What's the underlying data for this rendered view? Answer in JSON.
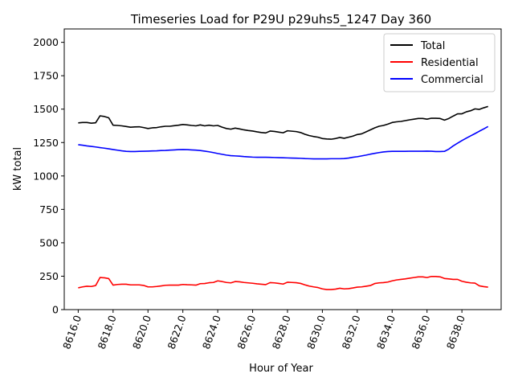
{
  "chart_data": {
    "type": "line",
    "title": "Timeseries Load for P29U p29uhs5_1247  Day 360",
    "xlabel": "Hour of Year",
    "ylabel": "kW total",
    "xlim": [
      8615.2,
      8640.25
    ],
    "ylim": [
      0,
      2100
    ],
    "x_ticks": [
      8616,
      8618,
      8620,
      8622,
      8624,
      8626,
      8628,
      8630,
      8632,
      8634,
      8636,
      8638
    ],
    "x_tick_labels": [
      "8616.0",
      "8618.0",
      "8620.0",
      "8622.0",
      "8624.0",
      "8626.0",
      "8628.0",
      "8630.0",
      "8632.0",
      "8634.0",
      "8636.0",
      "8638.0"
    ],
    "y_ticks": [
      0,
      250,
      500,
      750,
      1000,
      1250,
      1500,
      1750,
      2000
    ],
    "y_tick_labels": [
      "0",
      "250",
      "500",
      "750",
      "1000",
      "1250",
      "1500",
      "1750",
      "2000"
    ],
    "grid": false,
    "legend_position": "top-right",
    "x": [
      8616.0,
      8616.25,
      8616.5,
      8616.75,
      8617.0,
      8617.25,
      8617.5,
      8617.75,
      8618.0,
      8618.25,
      8618.5,
      8618.75,
      8619.0,
      8619.25,
      8619.5,
      8619.75,
      8620.0,
      8620.25,
      8620.5,
      8620.75,
      8621.0,
      8621.25,
      8621.5,
      8621.75,
      8622.0,
      8622.25,
      8622.5,
      8622.75,
      8623.0,
      8623.25,
      8623.5,
      8623.75,
      8624.0,
      8624.25,
      8624.5,
      8624.75,
      8625.0,
      8625.25,
      8625.5,
      8625.75,
      8626.0,
      8626.25,
      8626.5,
      8626.75,
      8627.0,
      8627.25,
      8627.5,
      8627.75,
      8628.0,
      8628.25,
      8628.5,
      8628.75,
      8629.0,
      8629.25,
      8629.5,
      8629.75,
      8630.0,
      8630.25,
      8630.5,
      8630.75,
      8631.0,
      8631.25,
      8631.5,
      8631.75,
      8632.0,
      8632.25,
      8632.5,
      8632.75,
      8633.0,
      8633.25,
      8633.5,
      8633.75,
      8634.0,
      8634.25,
      8634.5,
      8634.75,
      8635.0,
      8635.25,
      8635.5,
      8635.75,
      8636.0,
      8636.25,
      8636.5,
      8636.75,
      8637.0,
      8637.25,
      8637.5,
      8637.75,
      8638.0,
      8638.25,
      8638.5,
      8638.75,
      8639.0,
      8639.25,
      8639.5
    ],
    "series": [
      {
        "name": "Total",
        "color": "#000000",
        "values": [
          1397,
          1400,
          1400,
          1395,
          1398,
          1450,
          1445,
          1435,
          1380,
          1378,
          1375,
          1370,
          1365,
          1367,
          1368,
          1362,
          1355,
          1360,
          1362,
          1368,
          1372,
          1372,
          1376,
          1380,
          1385,
          1382,
          1378,
          1375,
          1382,
          1375,
          1380,
          1375,
          1378,
          1365,
          1355,
          1350,
          1358,
          1352,
          1345,
          1340,
          1336,
          1330,
          1325,
          1322,
          1336,
          1333,
          1328,
          1323,
          1338,
          1335,
          1332,
          1325,
          1312,
          1302,
          1295,
          1290,
          1280,
          1277,
          1275,
          1280,
          1288,
          1282,
          1290,
          1298,
          1310,
          1315,
          1330,
          1345,
          1360,
          1372,
          1378,
          1388,
          1400,
          1405,
          1408,
          1414,
          1420,
          1425,
          1430,
          1430,
          1425,
          1432,
          1432,
          1430,
          1418,
          1430,
          1448,
          1465,
          1465,
          1480,
          1488,
          1502,
          1498,
          1510,
          1520
        ]
      },
      {
        "name": "Residential",
        "color": "#ff0000",
        "values": [
          163,
          170,
          175,
          173,
          180,
          240,
          238,
          232,
          183,
          188,
          190,
          190,
          185,
          185,
          185,
          181,
          170,
          170,
          173,
          177,
          182,
          183,
          183,
          183,
          188,
          186,
          185,
          183,
          194,
          195,
          201,
          203,
          215,
          210,
          203,
          200,
          210,
          208,
          203,
          200,
          197,
          193,
          190,
          187,
          202,
          200,
          196,
          191,
          205,
          203,
          201,
          196,
          185,
          176,
          170,
          165,
          155,
          150,
          150,
          153,
          160,
          155,
          157,
          162,
          168,
          170,
          175,
          180,
          195,
          200,
          202,
          206,
          215,
          222,
          226,
          230,
          235,
          240,
          245,
          245,
          240,
          248,
          248,
          245,
          233,
          230,
          226,
          226,
          212,
          205,
          200,
          198,
          178,
          172,
          168
        ]
      },
      {
        "name": "Commercial",
        "color": "#0000ff",
        "values": [
          1234,
          1230,
          1225,
          1221,
          1217,
          1212,
          1208,
          1203,
          1198,
          1193,
          1188,
          1184,
          1183,
          1183,
          1184,
          1185,
          1186,
          1187,
          1188,
          1190,
          1191,
          1193,
          1195,
          1197,
          1198,
          1197,
          1195,
          1193,
          1190,
          1186,
          1181,
          1175,
          1168,
          1162,
          1156,
          1152,
          1150,
          1148,
          1145,
          1143,
          1141,
          1140,
          1140,
          1140,
          1139,
          1138,
          1137,
          1136,
          1135,
          1134,
          1133,
          1132,
          1130,
          1129,
          1128,
          1128,
          1128,
          1128,
          1129,
          1129,
          1129,
          1130,
          1134,
          1140,
          1144,
          1150,
          1156,
          1163,
          1169,
          1175,
          1180,
          1183,
          1184,
          1184,
          1184,
          1184,
          1185,
          1185,
          1185,
          1185,
          1186,
          1185,
          1183,
          1183,
          1184,
          1201,
          1225,
          1245,
          1265,
          1283,
          1300,
          1317,
          1335,
          1352,
          1370
        ]
      }
    ]
  }
}
